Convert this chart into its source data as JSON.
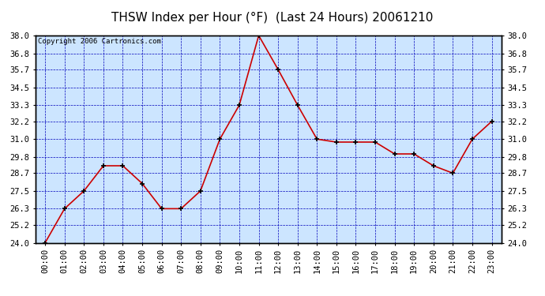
{
  "title": "THSW Index per Hour (°F)  (Last 24 Hours) 20061210",
  "copyright": "Copyright 2006 Cartronics.com",
  "hours": [
    "00:00",
    "01:00",
    "02:00",
    "03:00",
    "04:00",
    "05:00",
    "06:00",
    "07:00",
    "08:00",
    "09:00",
    "10:00",
    "11:00",
    "12:00",
    "13:00",
    "14:00",
    "15:00",
    "16:00",
    "17:00",
    "18:00",
    "19:00",
    "20:00",
    "21:00",
    "22:00",
    "23:00"
  ],
  "values": [
    24.0,
    26.3,
    27.5,
    29.2,
    29.2,
    28.0,
    26.3,
    26.3,
    27.5,
    31.0,
    33.3,
    38.0,
    35.7,
    33.3,
    31.0,
    30.8,
    30.8,
    30.8,
    30.0,
    30.0,
    29.2,
    28.7,
    31.0,
    32.2
  ],
  "ylim": [
    24.0,
    38.0
  ],
  "yticks": [
    24.0,
    25.2,
    26.3,
    27.5,
    28.7,
    29.8,
    31.0,
    32.2,
    33.3,
    34.5,
    35.7,
    36.8,
    38.0
  ],
  "line_color": "#cc0000",
  "marker": "+",
  "marker_color": "#000000",
  "bg_color": "#cce5ff",
  "grid_color": "#0000bb",
  "title_color": "#000000",
  "title_fontsize": 11,
  "copyright_fontsize": 6.5,
  "tick_fontsize": 7.5,
  "border_color": "#000000",
  "fig_bg": "#ffffff"
}
